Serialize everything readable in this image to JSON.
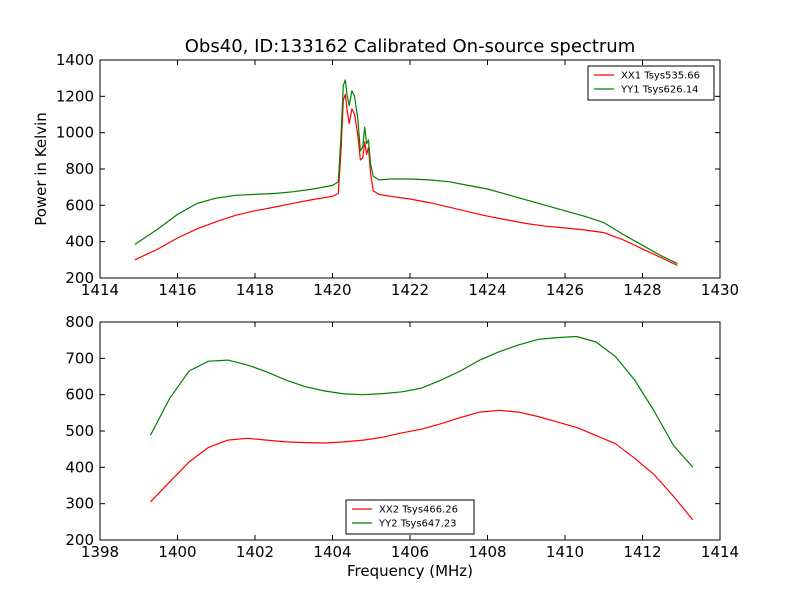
{
  "figure": {
    "title": "Obs40, ID:133162 Calibrated On-source spectrum"
  },
  "chart_data": [
    {
      "type": "line",
      "title": "Obs40, ID:133162 Calibrated On-source spectrum",
      "xlabel": "",
      "ylabel": "Power in Kelvin",
      "xlim": [
        1414,
        1430
      ],
      "ylim": [
        200,
        1400
      ],
      "xticks": [
        1414,
        1416,
        1418,
        1420,
        1422,
        1424,
        1426,
        1428,
        1430
      ],
      "yticks": [
        200,
        400,
        600,
        800,
        1000,
        1200,
        1400
      ],
      "grid": false,
      "legend_position": "top-right",
      "series": [
        {
          "name": "XX1 Tsys535.66",
          "color": "#ff0000",
          "points": [
            [
              1414.9,
              300
            ],
            [
              1415.5,
              360
            ],
            [
              1416,
              420
            ],
            [
              1416.5,
              470
            ],
            [
              1417,
              510
            ],
            [
              1417.5,
              545
            ],
            [
              1418,
              570
            ],
            [
              1418.5,
              590
            ],
            [
              1419,
              612
            ],
            [
              1419.5,
              632
            ],
            [
              1420,
              650
            ],
            [
              1420.15,
              665
            ],
            [
              1420.22,
              900
            ],
            [
              1420.28,
              1180
            ],
            [
              1420.33,
              1210
            ],
            [
              1420.38,
              1120
            ],
            [
              1420.43,
              1050
            ],
            [
              1420.5,
              1130
            ],
            [
              1420.57,
              1100
            ],
            [
              1420.65,
              990
            ],
            [
              1420.72,
              850
            ],
            [
              1420.78,
              860
            ],
            [
              1420.83,
              950
            ],
            [
              1420.88,
              880
            ],
            [
              1420.93,
              920
            ],
            [
              1420.98,
              780
            ],
            [
              1421.05,
              680
            ],
            [
              1421.2,
              660
            ],
            [
              1421.5,
              650
            ],
            [
              1422,
              635
            ],
            [
              1422.5,
              615
            ],
            [
              1423,
              590
            ],
            [
              1423.5,
              565
            ],
            [
              1424,
              540
            ],
            [
              1424.5,
              520
            ],
            [
              1425,
              500
            ],
            [
              1425.5,
              485
            ],
            [
              1426,
              475
            ],
            [
              1426.5,
              465
            ],
            [
              1427,
              450
            ],
            [
              1427.5,
              410
            ],
            [
              1428,
              360
            ],
            [
              1428.5,
              310
            ],
            [
              1428.9,
              270
            ]
          ]
        },
        {
          "name": "YY1 Tsys626.14",
          "color": "#008000",
          "points": [
            [
              1414.9,
              385
            ],
            [
              1415.5,
              470
            ],
            [
              1416,
              550
            ],
            [
              1416.5,
              610
            ],
            [
              1417,
              640
            ],
            [
              1417.5,
              655
            ],
            [
              1418,
              660
            ],
            [
              1418.5,
              665
            ],
            [
              1419,
              675
            ],
            [
              1419.5,
              690
            ],
            [
              1420,
              710
            ],
            [
              1420.15,
              730
            ],
            [
              1420.22,
              980
            ],
            [
              1420.28,
              1260
            ],
            [
              1420.33,
              1290
            ],
            [
              1420.38,
              1200
            ],
            [
              1420.43,
              1150
            ],
            [
              1420.5,
              1230
            ],
            [
              1420.57,
              1200
            ],
            [
              1420.65,
              1080
            ],
            [
              1420.72,
              900
            ],
            [
              1420.78,
              920
            ],
            [
              1420.83,
              1030
            ],
            [
              1420.88,
              940
            ],
            [
              1420.93,
              960
            ],
            [
              1420.98,
              830
            ],
            [
              1421.05,
              760
            ],
            [
              1421.2,
              740
            ],
            [
              1421.5,
              745
            ],
            [
              1422,
              745
            ],
            [
              1422.5,
              740
            ],
            [
              1423,
              730
            ],
            [
              1423.5,
              710
            ],
            [
              1424,
              690
            ],
            [
              1424.5,
              660
            ],
            [
              1425,
              630
            ],
            [
              1425.5,
              600
            ],
            [
              1426,
              570
            ],
            [
              1426.5,
              540
            ],
            [
              1427,
              505
            ],
            [
              1427.5,
              440
            ],
            [
              1428,
              380
            ],
            [
              1428.5,
              320
            ],
            [
              1428.9,
              280
            ]
          ]
        }
      ]
    },
    {
      "type": "line",
      "title": "",
      "xlabel": "Frequency (MHz)",
      "ylabel": "",
      "xlim": [
        1398,
        1414
      ],
      "ylim": [
        200,
        800
      ],
      "xticks": [
        1398,
        1400,
        1402,
        1404,
        1406,
        1408,
        1410,
        1412,
        1414
      ],
      "yticks": [
        200,
        300,
        400,
        500,
        600,
        700,
        800
      ],
      "grid": false,
      "legend_position": "bottom-center",
      "series": [
        {
          "name": "XX2 Tsys466.26",
          "color": "#ff0000",
          "points": [
            [
              1399.3,
              305
            ],
            [
              1399.8,
              360
            ],
            [
              1400.3,
              415
            ],
            [
              1400.8,
              455
            ],
            [
              1401.3,
              475
            ],
            [
              1401.8,
              480
            ],
            [
              1402.3,
              475
            ],
            [
              1402.8,
              470
            ],
            [
              1403.3,
              468
            ],
            [
              1403.8,
              467
            ],
            [
              1404.3,
              470
            ],
            [
              1404.8,
              475
            ],
            [
              1405.3,
              483
            ],
            [
              1405.8,
              495
            ],
            [
              1406.3,
              505
            ],
            [
              1406.8,
              520
            ],
            [
              1407.3,
              537
            ],
            [
              1407.8,
              552
            ],
            [
              1408.3,
              557
            ],
            [
              1408.8,
              552
            ],
            [
              1409.3,
              540
            ],
            [
              1409.8,
              525
            ],
            [
              1410.3,
              510
            ],
            [
              1410.8,
              488
            ],
            [
              1411.3,
              465
            ],
            [
              1411.8,
              425
            ],
            [
              1412.3,
              380
            ],
            [
              1412.8,
              320
            ],
            [
              1413.3,
              255
            ]
          ]
        },
        {
          "name": "YY2 Tsys647.23",
          "color": "#008000",
          "points": [
            [
              1399.3,
              488
            ],
            [
              1399.8,
              590
            ],
            [
              1400.3,
              665
            ],
            [
              1400.8,
              692
            ],
            [
              1401.3,
              695
            ],
            [
              1401.8,
              682
            ],
            [
              1402.3,
              663
            ],
            [
              1402.8,
              640
            ],
            [
              1403.3,
              622
            ],
            [
              1403.8,
              610
            ],
            [
              1404.3,
              602
            ],
            [
              1404.8,
              600
            ],
            [
              1405.3,
              603
            ],
            [
              1405.8,
              608
            ],
            [
              1406.3,
              618
            ],
            [
              1406.8,
              640
            ],
            [
              1407.3,
              665
            ],
            [
              1407.8,
              695
            ],
            [
              1408.3,
              718
            ],
            [
              1408.8,
              737
            ],
            [
              1409.3,
              752
            ],
            [
              1409.8,
              757
            ],
            [
              1410.3,
              760
            ],
            [
              1410.8,
              745
            ],
            [
              1411.3,
              705
            ],
            [
              1411.8,
              640
            ],
            [
              1412.3,
              555
            ],
            [
              1412.8,
              460
            ],
            [
              1413.3,
              400
            ]
          ]
        }
      ]
    }
  ]
}
